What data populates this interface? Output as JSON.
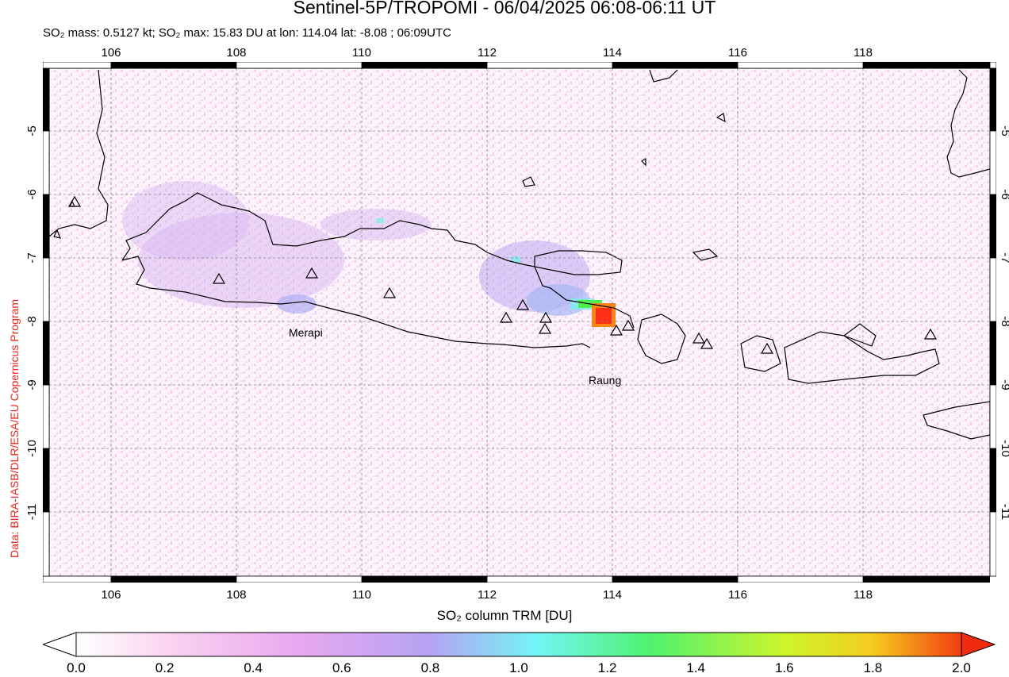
{
  "header": {
    "title": "Sentinel-5P/TROPOMI - 06/04/2025 06:08-06:11 UT",
    "subtitle": "SO₂ mass: 0.5127 kt; SO₂ max: 15.83 DU at lon: 114.04 lat: -8.08 ; 06:09UTC"
  },
  "credit": "Data: BIRA-IASB/DLR/ESA/EU Copernicus Program",
  "map": {
    "lon_ticks": [
      "106",
      "108",
      "110",
      "112",
      "114",
      "116",
      "118"
    ],
    "lat_ticks": [
      "-5",
      "-6",
      "-7",
      "-8",
      "-9",
      "-10",
      "-11"
    ],
    "volcano_labels": {
      "merapi": "Merapi",
      "raung": "Raung"
    },
    "plume_colors": {
      "red": "#ff1a00",
      "orange": "#ff7a00",
      "green": "#3cf03c",
      "cyan": "#6ef0f0",
      "blue": "#8fa0f0",
      "lilac": "#cfa8f0"
    }
  },
  "colorbar": {
    "label": "SO₂ column TRM [DU]",
    "ticks": [
      "0.0",
      "0.2",
      "0.4",
      "0.6",
      "0.8",
      "1.0",
      "1.2",
      "1.4",
      "1.6",
      "1.8",
      "2.0"
    ],
    "stops": [
      "#ffffff",
      "#fbd5f0",
      "#e8a8f0",
      "#b6a2f2",
      "#8fa3f5",
      "#72f5f5",
      "#4ff26e",
      "#5cee3c",
      "#cdf52c",
      "#f5cc20",
      "#f23e10"
    ]
  }
}
